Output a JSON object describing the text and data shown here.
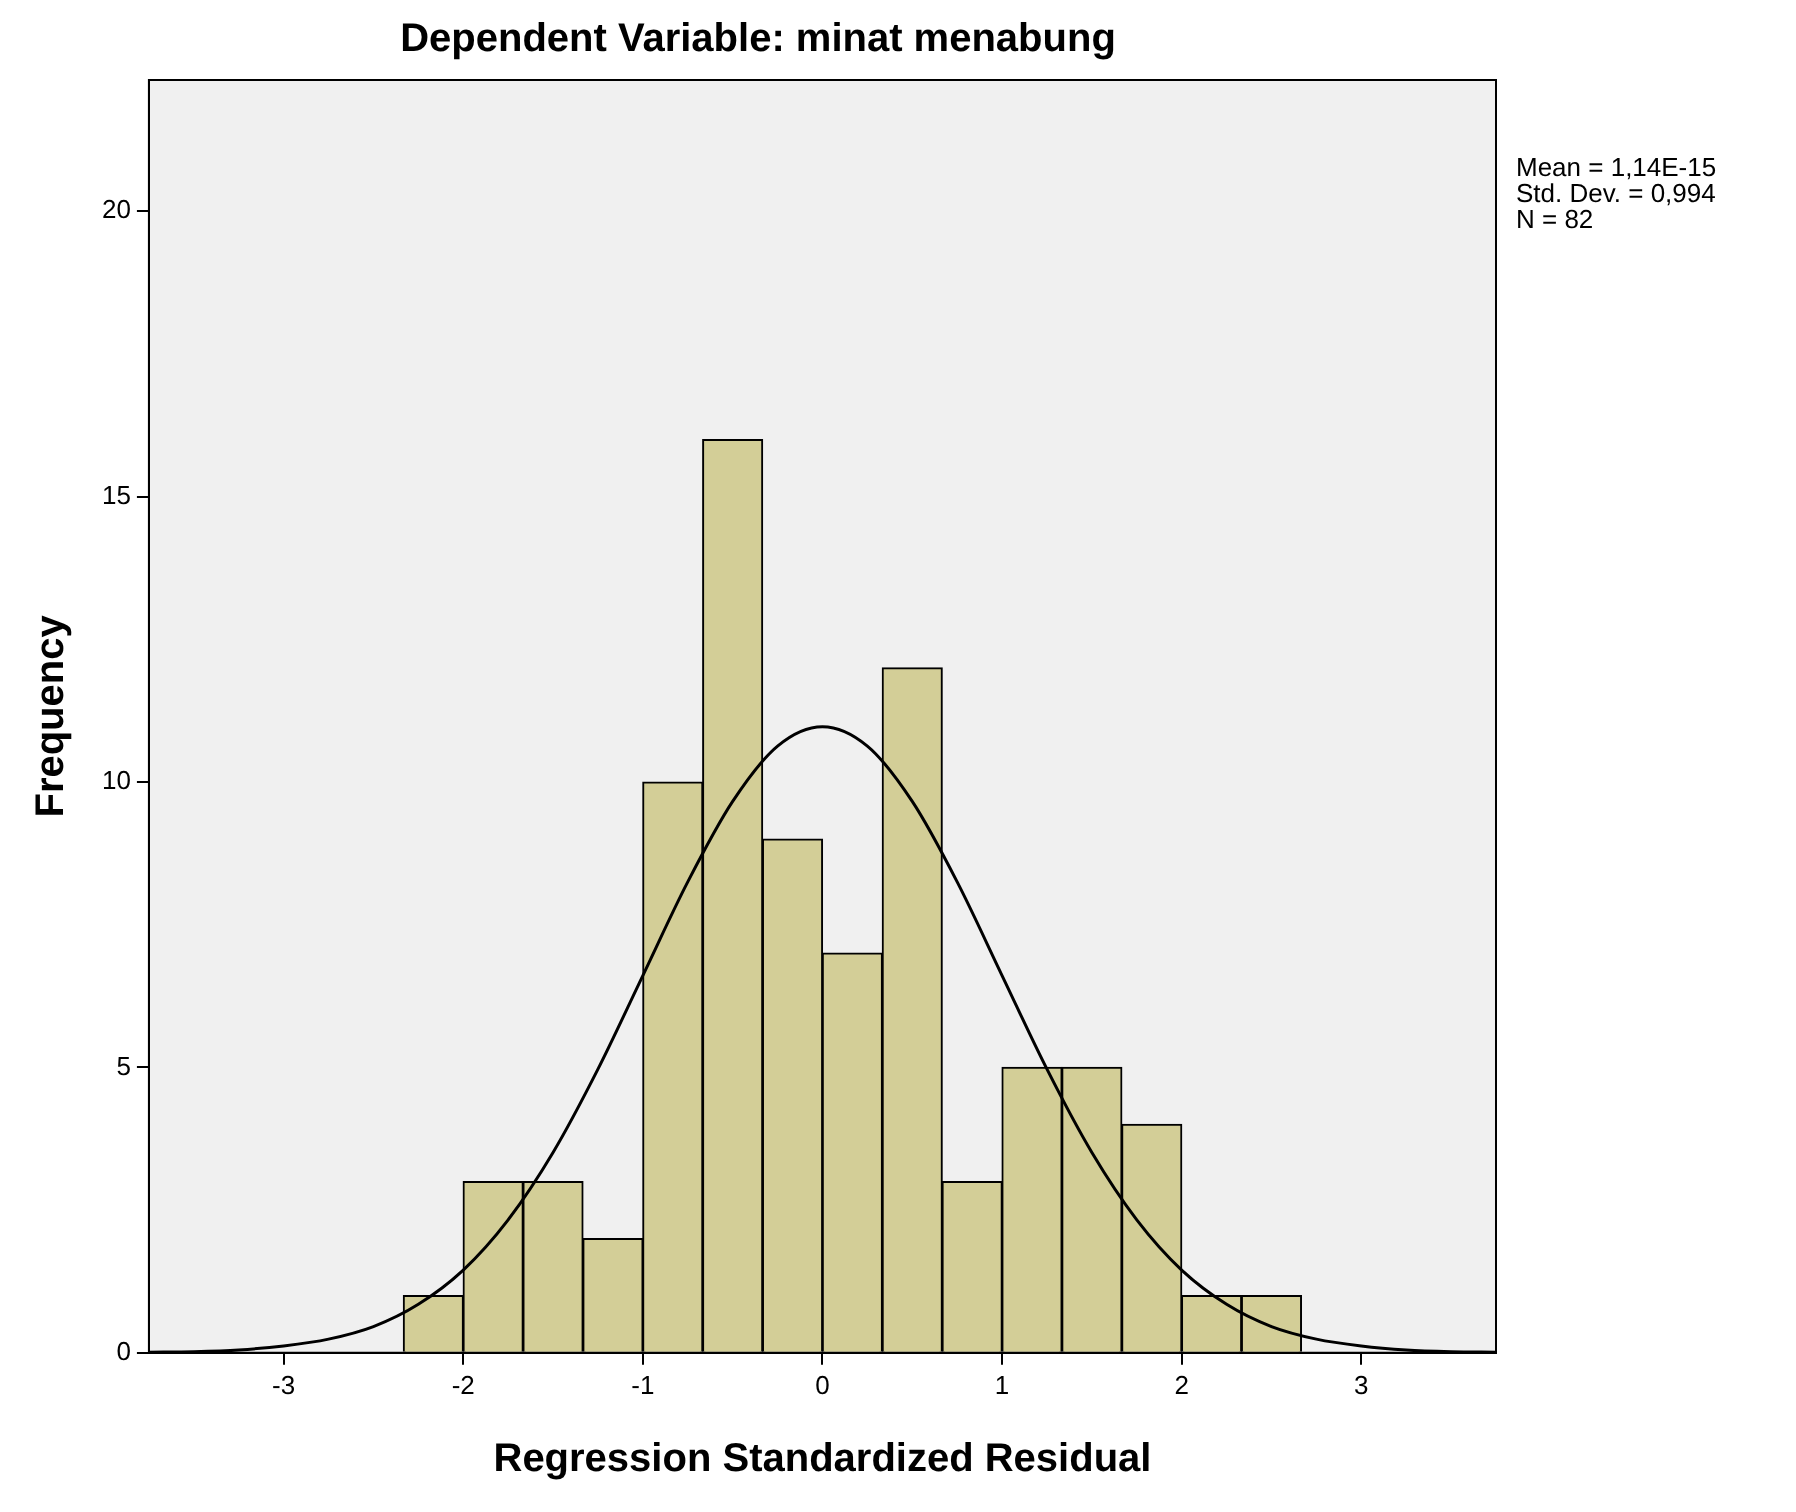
{
  "chart_data": {
    "type": "histogram",
    "title": "Dependent Variable: minat menabung",
    "xlabel": "Regression Standardized Residual",
    "ylabel": "Frequency",
    "bins": [
      -2.333,
      -2,
      -1.667,
      -1.333,
      -1,
      -0.667,
      -0.333,
      0,
      0.333,
      0.667,
      1,
      1.333,
      1.667,
      2,
      2.333,
      2.667
    ],
    "values": [
      1,
      3,
      3,
      2,
      10,
      16,
      9,
      7,
      12,
      3,
      5,
      5,
      4,
      1,
      1
    ],
    "color": "#d3ce97",
    "series": [
      {
        "type": "line",
        "color": "#000000",
        "marker": "none",
        "x": [
          -3.75,
          -3.5,
          -3.25,
          -3,
          -2.75,
          -2.5,
          -2.25,
          -2,
          -1.75,
          -1.5,
          -1.25,
          -1,
          -0.75,
          -0.5,
          -0.25,
          0,
          0.25,
          0.5,
          0.75,
          1,
          1.25,
          1.5,
          1.75,
          2,
          2.25,
          2.5,
          2.75,
          3,
          3.25,
          3.5,
          3.75
        ],
        "values": [
          0.01,
          0.02,
          0.05,
          0.12,
          0.24,
          0.46,
          0.85,
          1.45,
          2.33,
          3.51,
          4.97,
          6.61,
          8.25,
          9.66,
          10.63,
          10.97,
          10.63,
          9.66,
          8.25,
          6.61,
          4.97,
          3.51,
          2.33,
          1.45,
          0.85,
          0.46,
          0.24,
          0.12,
          0.05,
          0.02,
          0.01
        ]
      }
    ],
    "xlim": [
      -3.75,
      3.75
    ],
    "xticks": [
      -3,
      -2,
      -1,
      0,
      1,
      2,
      3
    ],
    "ylim": [
      0,
      22.3
    ],
    "yticks": [
      0,
      5,
      10,
      15,
      20
    ],
    "grid": false,
    "legend": false,
    "annotations": [
      "Mean = 1,14E-15",
      "Std. Dev. = 0,994",
      "N = 82"
    ]
  }
}
